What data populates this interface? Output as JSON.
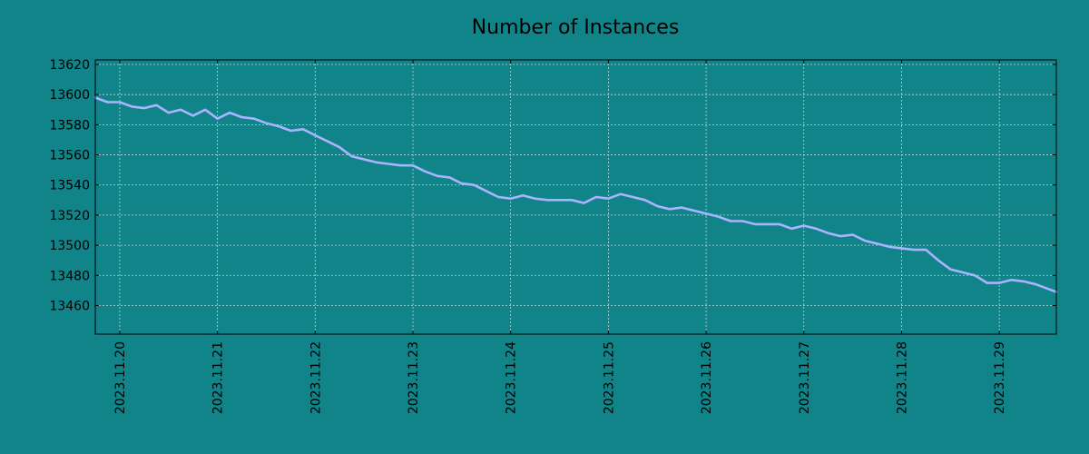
{
  "chart_data": {
    "type": "line",
    "title": "Number of Instances",
    "xlabel": "",
    "ylabel": "",
    "x_ticks": [
      "2023.11.20",
      "2023.11.21",
      "2023.11.22",
      "2023.11.23",
      "2023.11.24",
      "2023.11.25",
      "2023.11.26",
      "2023.11.27",
      "2023.11.28",
      "2023.11.29"
    ],
    "y_ticks": [
      13460,
      13480,
      13500,
      13520,
      13540,
      13560,
      13580,
      13600,
      13620
    ],
    "xlim": [
      "2023-11-19T18:00",
      "2023-11-29T14:00"
    ],
    "ylim": [
      13441,
      13623
    ],
    "grid": true,
    "colors": {
      "background": "#108488",
      "line": "#a9b4ff",
      "grid": "#b8d8d8",
      "axis": "#000000"
    },
    "series": [
      {
        "x": [
          "2023-11-19T18:00",
          "2023-11-19T21:00",
          "2023-11-20T00:00",
          "2023-11-20T03:00",
          "2023-11-20T06:00",
          "2023-11-20T09:00",
          "2023-11-20T12:00",
          "2023-11-20T15:00",
          "2023-11-20T18:00",
          "2023-11-20T21:00",
          "2023-11-21T00:00",
          "2023-11-21T03:00",
          "2023-11-21T06:00",
          "2023-11-21T09:00",
          "2023-11-21T12:00",
          "2023-11-21T15:00",
          "2023-11-21T18:00",
          "2023-11-21T21:00",
          "2023-11-22T00:00",
          "2023-11-22T03:00",
          "2023-11-22T06:00",
          "2023-11-22T09:00",
          "2023-11-22T12:00",
          "2023-11-22T15:00",
          "2023-11-22T18:00",
          "2023-11-22T21:00",
          "2023-11-23T00:00",
          "2023-11-23T03:00",
          "2023-11-23T06:00",
          "2023-11-23T09:00",
          "2023-11-23T12:00",
          "2023-11-23T15:00",
          "2023-11-23T18:00",
          "2023-11-23T21:00",
          "2023-11-24T00:00",
          "2023-11-24T03:00",
          "2023-11-24T06:00",
          "2023-11-24T09:00",
          "2023-11-24T12:00",
          "2023-11-24T15:00",
          "2023-11-24T18:00",
          "2023-11-24T21:00",
          "2023-11-25T00:00",
          "2023-11-25T03:00",
          "2023-11-25T06:00",
          "2023-11-25T09:00",
          "2023-11-25T12:00",
          "2023-11-25T15:00",
          "2023-11-25T18:00",
          "2023-11-25T21:00",
          "2023-11-26T00:00",
          "2023-11-26T03:00",
          "2023-11-26T06:00",
          "2023-11-26T09:00",
          "2023-11-26T12:00",
          "2023-11-26T15:00",
          "2023-11-26T18:00",
          "2023-11-26T21:00",
          "2023-11-27T00:00",
          "2023-11-27T03:00",
          "2023-11-27T06:00",
          "2023-11-27T09:00",
          "2023-11-27T12:00",
          "2023-11-27T15:00",
          "2023-11-27T18:00",
          "2023-11-27T21:00",
          "2023-11-28T00:00",
          "2023-11-28T03:00",
          "2023-11-28T06:00",
          "2023-11-28T09:00",
          "2023-11-28T12:00",
          "2023-11-28T15:00",
          "2023-11-28T18:00",
          "2023-11-28T21:00",
          "2023-11-29T00:00",
          "2023-11-29T03:00",
          "2023-11-29T06:00",
          "2023-11-29T09:00",
          "2023-11-29T12:00",
          "2023-11-29T14:00"
        ],
        "values": [
          13598,
          13595,
          13595,
          13592,
          13591,
          13593,
          13588,
          13590,
          13586,
          13590,
          13584,
          13588,
          13585,
          13584,
          13581,
          13579,
          13576,
          13577,
          13573,
          13569,
          13565,
          13559,
          13557,
          13555,
          13554,
          13553,
          13553,
          13549,
          13546,
          13545,
          13541,
          13540,
          13536,
          13532,
          13531,
          13533,
          13531,
          13530,
          13530,
          13530,
          13528,
          13532,
          13531,
          13534,
          13532,
          13530,
          13526,
          13524,
          13525,
          13523,
          13521,
          13519,
          13516,
          13516,
          13514,
          13514,
          13514,
          13511,
          13513,
          13511,
          13508,
          13506,
          13507,
          13503,
          13501,
          13499,
          13498,
          13497,
          13497,
          13490,
          13484,
          13482,
          13480,
          13475,
          13475,
          13477,
          13476,
          13474,
          13471,
          13469
        ]
      }
    ]
  }
}
